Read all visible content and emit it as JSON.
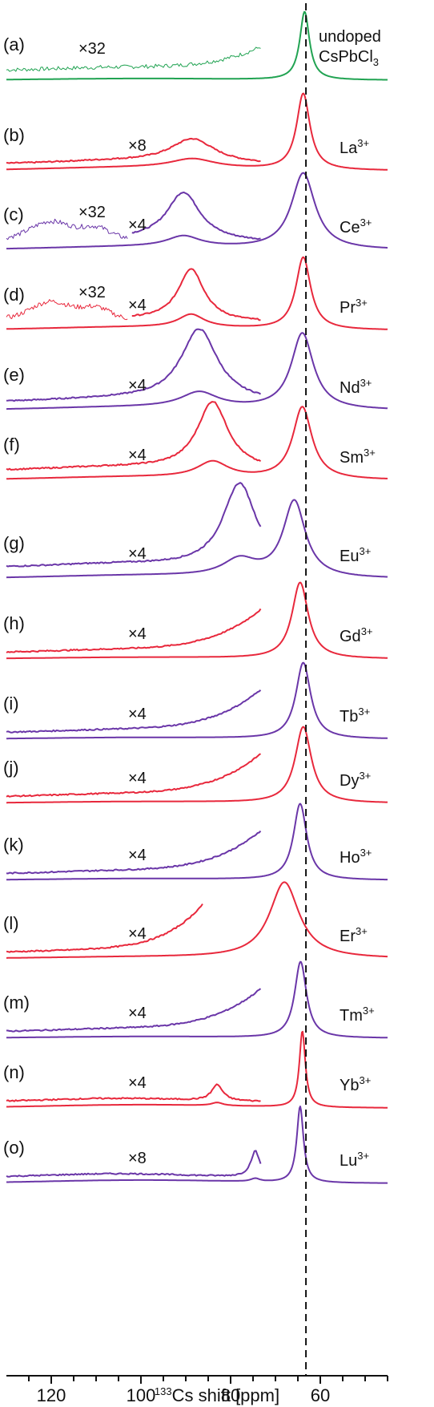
{
  "chart_data": {
    "type": "line",
    "title": "",
    "xlabel_prefix": "133",
    "xlabel_main": "Cs shift [ppm]",
    "xlim": [
      130,
      45
    ],
    "x_ticks": [
      120,
      100,
      80,
      60
    ],
    "reference_line_ppm": 63.2,
    "reference_line_style": "dashed",
    "colors": {
      "red": "#e8283c",
      "purple": "#6a36a8",
      "green": "#21a352"
    },
    "series": [
      {
        "label": "(a)",
        "name_lines": [
          "undoped",
          "CsPbCl₃"
        ],
        "name_base": "",
        "name_sup": "",
        "color": "green",
        "main_peak": {
          "x": 63.5,
          "w": 1.3
        },
        "broad_peak": null,
        "scaled_factor": "×32",
        "scaled_range": [
          130,
          73
        ],
        "scaled_rise": true,
        "inset_factor": null
      },
      {
        "label": "(b)",
        "name_base": "La",
        "name_sup": "3+",
        "color": "red",
        "main_peak": {
          "x": 63.8,
          "w": 1.8
        },
        "broad_peak": {
          "x": 88.5,
          "w": 6
        },
        "scaled_factor": "×8",
        "scaled_range": [
          130,
          73
        ],
        "inset_factor": null
      },
      {
        "label": "(c)",
        "name_base": "Ce",
        "name_sup": "3+",
        "color": "purple",
        "main_peak": {
          "x": 63.8,
          "w": 3.2
        },
        "broad_peak": {
          "x": 90.5,
          "w": 4.5
        },
        "scaled_factor": "×4",
        "scaled_range": [
          102,
          73
        ],
        "inset_factor": "×32",
        "inset_range": [
          130,
          103
        ]
      },
      {
        "label": "(d)",
        "name_base": "Pr",
        "name_sup": "3+",
        "color": "red",
        "main_peak": {
          "x": 63.8,
          "w": 2.0
        },
        "broad_peak": {
          "x": 88.8,
          "w": 3.5
        },
        "scaled_factor": "×4",
        "scaled_range": [
          102,
          73
        ],
        "inset_factor": "×32",
        "inset_range": [
          130,
          103
        ]
      },
      {
        "label": "(e)",
        "name_base": "Nd",
        "name_sup": "3+",
        "color": "purple",
        "main_peak": {
          "x": 64.0,
          "w": 3.0
        },
        "broad_peak": {
          "x": 87.0,
          "w": 5.0
        },
        "scaled_factor": "×4",
        "scaled_range": [
          130,
          73
        ],
        "inset_factor": null
      },
      {
        "label": "(f)",
        "name_base": "Sm",
        "name_sup": "3+",
        "color": "red",
        "main_peak": {
          "x": 64.0,
          "w": 2.6
        },
        "broad_peak": {
          "x": 84.0,
          "w": 4.2
        },
        "scaled_factor": "×4",
        "scaled_range": [
          130,
          73
        ],
        "inset_factor": null
      },
      {
        "label": "(g)",
        "name_base": "Eu",
        "name_sup": "3+",
        "color": "purple",
        "main_peak": {
          "x": 65.8,
          "w": 3.0
        },
        "broad_peak": {
          "x": 78.0,
          "w": 4.5
        },
        "scaled_factor": "×4",
        "scaled_range": [
          130,
          73
        ],
        "inset_factor": null
      },
      {
        "label": "(h)",
        "name_base": "Gd",
        "name_sup": "3+",
        "color": "red",
        "main_peak": {
          "x": 64.5,
          "w": 2.2
        },
        "broad_peak": null,
        "scaled_factor": "×4",
        "scaled_range": [
          130,
          73
        ],
        "scaled_rise": true,
        "inset_factor": null
      },
      {
        "label": "(i)",
        "name_base": "Tb",
        "name_sup": "3+",
        "color": "purple",
        "main_peak": {
          "x": 63.8,
          "w": 2.0
        },
        "broad_peak": null,
        "scaled_factor": "×4",
        "scaled_range": [
          130,
          73
        ],
        "scaled_rise": true,
        "inset_factor": null
      },
      {
        "label": "(j)",
        "name_base": "Dy",
        "name_sup": "3+",
        "color": "red",
        "main_peak": {
          "x": 63.8,
          "w": 2.2
        },
        "broad_peak": null,
        "scaled_factor": "×4",
        "scaled_range": [
          130,
          73
        ],
        "scaled_rise": true,
        "inset_factor": null
      },
      {
        "label": "(k)",
        "name_base": "Ho",
        "name_sup": "3+",
        "color": "purple",
        "main_peak": {
          "x": 64.5,
          "w": 1.8
        },
        "broad_peak": null,
        "scaled_factor": "×4",
        "scaled_range": [
          130,
          73
        ],
        "scaled_rise": true,
        "inset_factor": null
      },
      {
        "label": "(l)",
        "name_base": "Er",
        "name_sup": "3+",
        "color": "red",
        "main_peak": {
          "x": 68.0,
          "w": 4.0
        },
        "broad_peak": null,
        "scaled_factor": "×4",
        "scaled_range": [
          130,
          86
        ],
        "scaled_rise": true,
        "inset_factor": null
      },
      {
        "label": "(m)",
        "name_base": "Tm",
        "name_sup": "3+",
        "color": "purple",
        "main_peak": {
          "x": 64.4,
          "w": 1.6
        },
        "broad_peak": null,
        "scaled_factor": "×4",
        "scaled_range": [
          130,
          73
        ],
        "scaled_rise": true,
        "inset_factor": null
      },
      {
        "label": "(n)",
        "name_base": "Yb",
        "name_sup": "3+",
        "color": "red",
        "main_peak": {
          "x": 64.0,
          "w": 0.8
        },
        "broad_peak": {
          "x": 83.0,
          "w": 1.5
        },
        "scaled_factor": "×4",
        "scaled_range": [
          130,
          73
        ],
        "inset_factor": null
      },
      {
        "label": "(o)",
        "name_base": "Lu",
        "name_sup": "3+",
        "color": "purple",
        "main_peak": {
          "x": 64.5,
          "w": 0.9
        },
        "broad_peak": {
          "x": 74.5,
          "w": 1.2
        },
        "scaled_factor": "×8",
        "scaled_range": [
          130,
          73
        ],
        "inset_factor": null
      }
    ]
  }
}
